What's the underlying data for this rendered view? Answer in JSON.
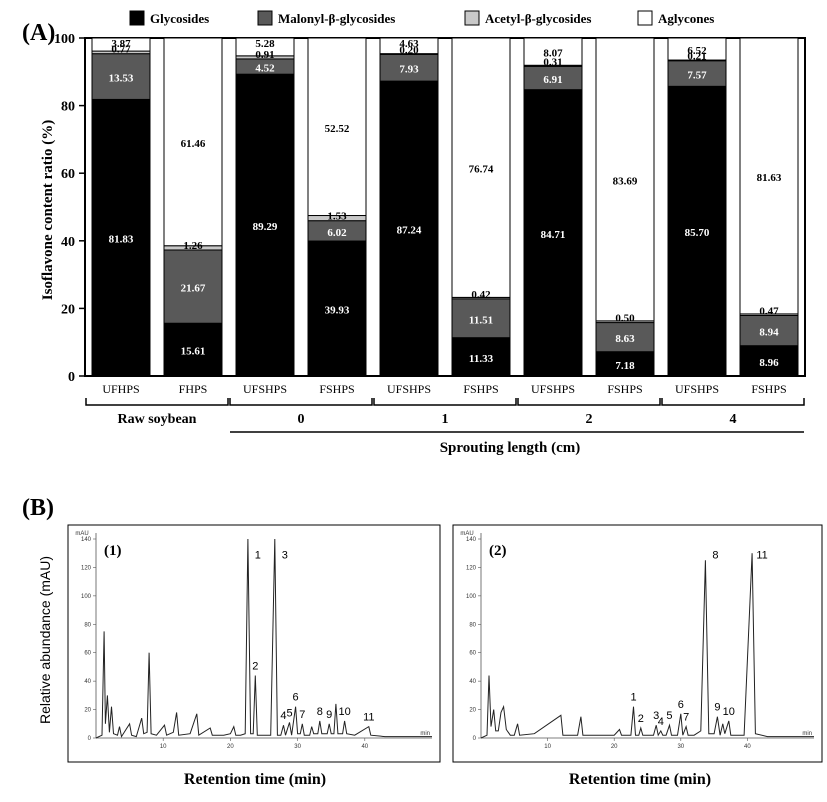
{
  "panel_a": {
    "label": "(A)"
  },
  "panel_b": {
    "label": "(B)"
  },
  "chart_data": [
    {
      "type": "bar",
      "stacked": true,
      "title": "",
      "xlabel": "Sprouting length (cm)",
      "ylabel": "Isoflavone content ratio (%)",
      "ylim": [
        0,
        100
      ],
      "yticks": [
        0,
        20,
        40,
        60,
        80,
        100
      ],
      "legend_position": "top",
      "grid": false,
      "categories": [
        "UFHPS",
        "FHPS",
        "UFSHPS",
        "FSHPS",
        "UFSHPS",
        "FSHPS",
        "UFSHPS",
        "FSHPS",
        "UFSHPS",
        "FSHPS"
      ],
      "groups": [
        {
          "label": "Raw soybean",
          "indices": [
            0,
            1
          ]
        },
        {
          "label": "0",
          "indices": [
            2,
            3
          ]
        },
        {
          "label": "1",
          "indices": [
            4,
            5
          ]
        },
        {
          "label": "2",
          "indices": [
            6,
            7
          ]
        },
        {
          "label": "4",
          "indices": [
            8,
            9
          ]
        }
      ],
      "series": [
        {
          "name": "Glycosides",
          "color": "#000000",
          "values": [
            81.83,
            15.61,
            89.29,
            39.93,
            87.24,
            11.33,
            84.71,
            7.18,
            85.7,
            8.96
          ],
          "labels": [
            "81.83",
            "15.61",
            "89.29",
            "39.93",
            "87.24",
            "11.33",
            "84.71",
            "7.18",
            "85.70",
            "8.96"
          ]
        },
        {
          "name": "Malonyl-β-glycosides",
          "color": "#595959",
          "values": [
            13.53,
            21.67,
            4.52,
            6.02,
            7.93,
            11.51,
            6.91,
            8.63,
            7.57,
            8.94
          ],
          "labels": [
            "13.53",
            "21.67",
            "4.52",
            "6.02",
            "7.93",
            "11.51",
            "6.91",
            "8.63",
            "7.57",
            "8.94"
          ]
        },
        {
          "name": "Acetyl-β-glycosides",
          "color": "#c8c8c8",
          "values": [
            0.77,
            1.26,
            0.91,
            1.53,
            0.2,
            0.42,
            0.31,
            0.5,
            0.21,
            0.47
          ],
          "labels": [
            "0.77",
            "1.26",
            "0.91",
            "1.53",
            "0.20",
            "0.42",
            "0.31",
            "0.50",
            "0.21",
            "0.47"
          ]
        },
        {
          "name": "Aglycones",
          "color": "#ffffff",
          "values": [
            3.87,
            61.46,
            5.28,
            52.52,
            4.63,
            76.74,
            8.07,
            83.69,
            6.52,
            81.63
          ],
          "labels": [
            "3.87",
            "61.46",
            "5.28",
            "52.52",
            "4.63",
            "76.74",
            "8.07",
            "83.69",
            "6.52",
            "81.63"
          ]
        }
      ]
    },
    {
      "type": "line",
      "panel": "(1)",
      "xlabel": "Retention time (min)",
      "ylabel": "Relative abundance (mAU)",
      "xlim": [
        0,
        50
      ],
      "ylim": [
        0,
        140
      ],
      "xticks": [
        10,
        20,
        30,
        40
      ],
      "yticks": [
        0,
        20,
        40,
        60,
        80,
        100,
        120,
        140
      ],
      "x_unit_label": "min",
      "y_unit_label": "mAU",
      "baseline": [
        [
          0,
          0
        ],
        [
          0.9,
          2
        ],
        [
          1.2,
          75
        ],
        [
          1.4,
          10
        ],
        [
          1.7,
          30
        ],
        [
          2.0,
          4
        ],
        [
          2.3,
          22
        ],
        [
          2.6,
          3
        ],
        [
          3.2,
          2
        ],
        [
          3.5,
          8
        ],
        [
          3.8,
          1
        ],
        [
          5.0,
          10
        ],
        [
          5.3,
          2
        ],
        [
          6.0,
          1
        ],
        [
          6.8,
          14
        ],
        [
          7.1,
          3
        ],
        [
          7.6,
          4
        ],
        [
          7.9,
          60
        ],
        [
          8.2,
          3
        ],
        [
          9.0,
          2
        ],
        [
          10.2,
          9
        ],
        [
          10.5,
          2
        ],
        [
          11.5,
          4
        ],
        [
          12.0,
          18
        ],
        [
          12.3,
          2
        ],
        [
          14.0,
          3
        ],
        [
          15.0,
          17
        ],
        [
          15.3,
          2
        ],
        [
          17.0,
          7
        ],
        [
          17.3,
          2
        ],
        [
          19.0,
          2
        ],
        [
          20.0,
          3
        ],
        [
          20.5,
          8
        ],
        [
          20.8,
          2
        ],
        [
          21.5,
          2
        ],
        [
          22.2,
          3
        ],
        [
          22.6,
          140
        ],
        [
          23.0,
          3
        ],
        [
          23.4,
          3
        ],
        [
          23.7,
          44
        ],
        [
          24.0,
          2
        ],
        [
          26.0,
          2
        ],
        [
          26.6,
          140
        ],
        [
          27.0,
          2
        ],
        [
          27.5,
          2
        ],
        [
          27.9,
          9
        ],
        [
          28.2,
          2
        ],
        [
          28.8,
          11
        ],
        [
          29.1,
          2
        ],
        [
          29.7,
          22
        ],
        [
          30.0,
          3
        ],
        [
          30.4,
          3
        ],
        [
          30.7,
          10
        ],
        [
          31.0,
          2
        ],
        [
          31.8,
          2
        ],
        [
          32.1,
          8
        ],
        [
          32.4,
          3
        ],
        [
          33.0,
          3
        ],
        [
          33.3,
          12
        ],
        [
          33.6,
          3
        ],
        [
          34.4,
          3
        ],
        [
          34.7,
          10
        ],
        [
          35.0,
          3
        ],
        [
          35.4,
          3
        ],
        [
          35.7,
          24
        ],
        [
          36.0,
          3
        ],
        [
          36.7,
          3
        ],
        [
          37.0,
          12
        ],
        [
          37.3,
          3
        ],
        [
          38.5,
          2
        ],
        [
          40.6,
          8
        ],
        [
          40.9,
          2
        ],
        [
          43.0,
          1
        ],
        [
          50,
          1
        ]
      ],
      "peaks": [
        {
          "label": "1",
          "x": 22.6
        },
        {
          "label": "2",
          "x": 23.7
        },
        {
          "label": "3",
          "x": 26.6
        },
        {
          "label": "4",
          "x": 27.9
        },
        {
          "label": "5",
          "x": 28.8
        },
        {
          "label": "6",
          "x": 29.7
        },
        {
          "label": "7",
          "x": 30.7
        },
        {
          "label": "8",
          "x": 33.3
        },
        {
          "label": "9",
          "x": 34.7
        },
        {
          "label": "10",
          "x": 37.0
        },
        {
          "label": "11",
          "x": 40.6
        }
      ]
    },
    {
      "type": "line",
      "panel": "(2)",
      "xlabel": "Retention time (min)",
      "ylabel": "",
      "xlim": [
        0,
        50
      ],
      "ylim": [
        0,
        140
      ],
      "xticks": [
        10,
        20,
        30,
        40
      ],
      "yticks": [
        0,
        20,
        40,
        60,
        80,
        100,
        120,
        140
      ],
      "x_unit_label": "min",
      "y_unit_label": "mAU",
      "baseline": [
        [
          0,
          0
        ],
        [
          0.9,
          2
        ],
        [
          1.2,
          44
        ],
        [
          1.5,
          8
        ],
        [
          1.9,
          20
        ],
        [
          2.2,
          5
        ],
        [
          2.6,
          5
        ],
        [
          3.0,
          18
        ],
        [
          3.4,
          22
        ],
        [
          3.8,
          6
        ],
        [
          4.4,
          2
        ],
        [
          5.0,
          2
        ],
        [
          5.5,
          10
        ],
        [
          5.8,
          2
        ],
        [
          8.0,
          3
        ],
        [
          12.0,
          16
        ],
        [
          12.3,
          2
        ],
        [
          14.5,
          2
        ],
        [
          15.0,
          15
        ],
        [
          15.3,
          2
        ],
        [
          18.0,
          2
        ],
        [
          20.0,
          2
        ],
        [
          20.8,
          6
        ],
        [
          21.1,
          2
        ],
        [
          22.5,
          2
        ],
        [
          22.9,
          22
        ],
        [
          23.2,
          2
        ],
        [
          23.7,
          2
        ],
        [
          24.0,
          7
        ],
        [
          24.3,
          2
        ],
        [
          25.9,
          2
        ],
        [
          26.3,
          9
        ],
        [
          26.6,
          2
        ],
        [
          27.0,
          5
        ],
        [
          27.3,
          2
        ],
        [
          27.8,
          2
        ],
        [
          28.3,
          9
        ],
        [
          28.6,
          2
        ],
        [
          29.5,
          2
        ],
        [
          30.0,
          17
        ],
        [
          30.3,
          2
        ],
        [
          30.8,
          8
        ],
        [
          31.1,
          2
        ],
        [
          32.0,
          2
        ],
        [
          33.0,
          5
        ],
        [
          33.7,
          125
        ],
        [
          34.2,
          3
        ],
        [
          35.0,
          3
        ],
        [
          35.5,
          15
        ],
        [
          35.9,
          2
        ],
        [
          36.3,
          10
        ],
        [
          36.6,
          3
        ],
        [
          37.2,
          12
        ],
        [
          37.5,
          2
        ],
        [
          39.5,
          2
        ],
        [
          40.7,
          130
        ],
        [
          41.2,
          3
        ],
        [
          43.0,
          1
        ],
        [
          50,
          1
        ]
      ],
      "peaks": [
        {
          "label": "1",
          "x": 22.9
        },
        {
          "label": "2",
          "x": 24.0
        },
        {
          "label": "3",
          "x": 26.3
        },
        {
          "label": "4",
          "x": 27.0
        },
        {
          "label": "5",
          "x": 28.3
        },
        {
          "label": "6",
          "x": 30.0
        },
        {
          "label": "7",
          "x": 30.8
        },
        {
          "label": "8",
          "x": 33.7
        },
        {
          "label": "9",
          "x": 35.5
        },
        {
          "label": "10",
          "x": 37.2
        },
        {
          "label": "11",
          "x": 40.7
        }
      ]
    }
  ]
}
